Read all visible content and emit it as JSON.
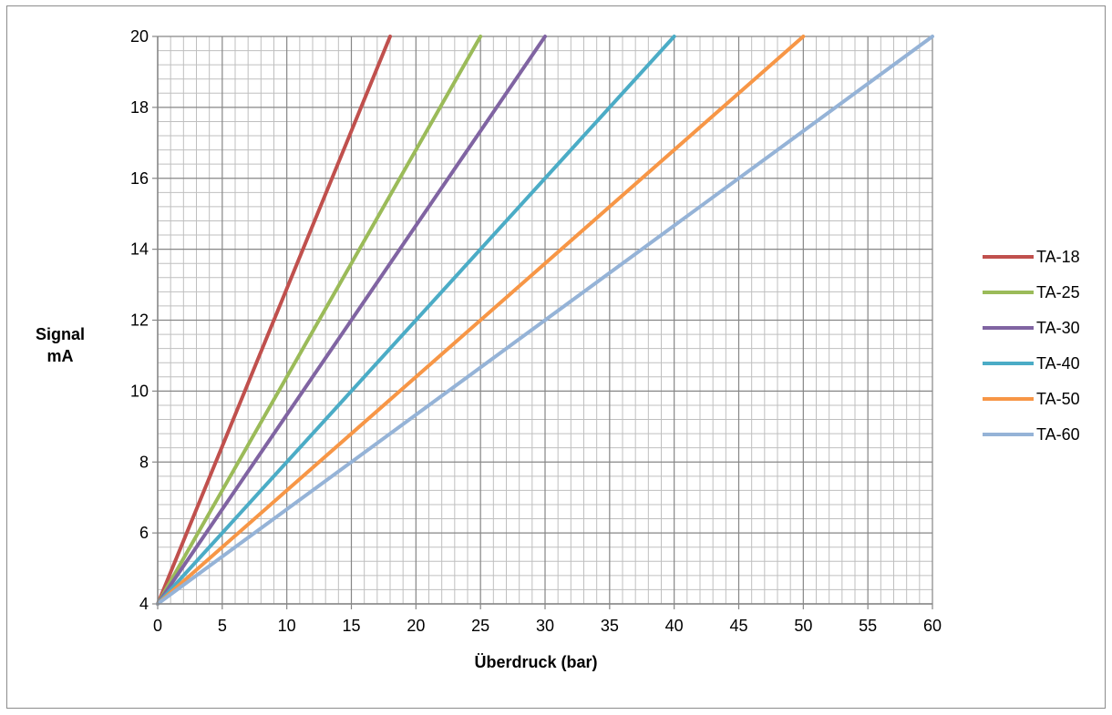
{
  "chart_data": {
    "type": "line",
    "title": "",
    "xlabel": "Überdruck (bar)",
    "ylabel_lines": [
      "Signal",
      "mA"
    ],
    "xlim": [
      0,
      60
    ],
    "ylim": [
      4,
      20
    ],
    "x_ticks": [
      0,
      5,
      10,
      15,
      20,
      25,
      30,
      35,
      40,
      45,
      50,
      55,
      60
    ],
    "y_ticks": [
      4,
      6,
      8,
      10,
      12,
      14,
      16,
      18,
      20
    ],
    "grid": true,
    "minor_grid": true,
    "legend_position": "right",
    "series": [
      {
        "name": "TA-18",
        "color": "#C0504D",
        "x": [
          0,
          18
        ],
        "y": [
          4,
          20
        ]
      },
      {
        "name": "TA-25",
        "color": "#9BBB59",
        "x": [
          0,
          25
        ],
        "y": [
          4,
          20
        ]
      },
      {
        "name": "TA-30",
        "color": "#8064A2",
        "x": [
          0,
          30
        ],
        "y": [
          4,
          20
        ]
      },
      {
        "name": "TA-40",
        "color": "#4BACC6",
        "x": [
          0,
          40
        ],
        "y": [
          4,
          20
        ]
      },
      {
        "name": "TA-50",
        "color": "#F79646",
        "x": [
          0,
          50
        ],
        "y": [
          4,
          20
        ]
      },
      {
        "name": "TA-60",
        "color": "#95B3D7",
        "x": [
          0,
          60
        ],
        "y": [
          4,
          20
        ]
      }
    ]
  }
}
